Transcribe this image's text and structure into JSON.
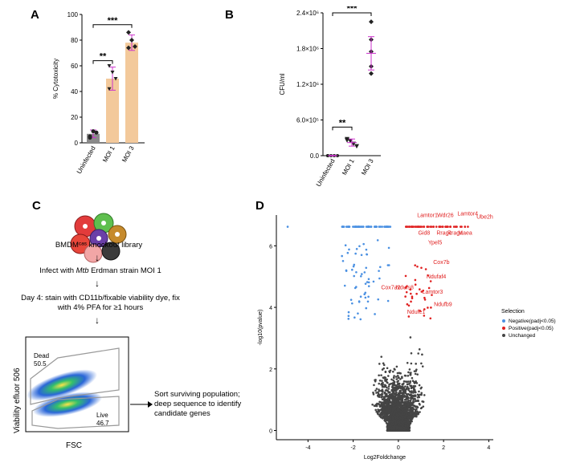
{
  "panels": {
    "a": "A",
    "b": "B",
    "c": "C",
    "d": "D"
  },
  "colors": {
    "uninfected": "#8a8a8a",
    "moi": "#f3c99b",
    "error": "#cc33cc",
    "negative": "#4a90e2",
    "positive": "#e02020",
    "unchanged": "#444444"
  },
  "chart_data": [
    {
      "type": "bar",
      "ylabel": "% Cytotoxicity",
      "ylim": [
        0,
        100
      ],
      "yticks": [
        "0",
        "20",
        "40",
        "60",
        "80",
        "100"
      ],
      "categories": [
        "Uninfected",
        "MOI 1",
        "MOI 3"
      ],
      "values": [
        7,
        50,
        78
      ],
      "errors": [
        3,
        9,
        6
      ],
      "points": [
        [
          5,
          9,
          8,
          4
        ],
        [
          60,
          55,
          50,
          42
        ],
        [
          86,
          80,
          75,
          74
        ]
      ],
      "significance": [
        "**",
        "***"
      ]
    },
    {
      "type": "scatter",
      "ylabel": "CFU/ml",
      "ylim": [
        0,
        2400000
      ],
      "yticks": [
        "0.0",
        "6.0×10⁵",
        "1.2×10⁶",
        "1.8×10⁶",
        "2.4×10⁶"
      ],
      "categories": [
        "Uninfected",
        "MOI 1",
        "MOI 3"
      ],
      "means": [
        0,
        220000,
        1720000
      ],
      "errors": [
        5000,
        60000,
        280000
      ],
      "points": [
        [
          0,
          0,
          0,
          0,
          0
        ],
        [
          280000,
          250000,
          200000,
          160000,
          260000
        ],
        [
          2250000,
          1950000,
          1750000,
          1500000,
          1380000
        ]
      ],
      "significance": [
        "**",
        "***"
      ]
    },
    {
      "type": "scatter",
      "xlabel": "Log2Foldchange",
      "ylabel": "-log10(pvalue)",
      "xlim": [
        -5.4,
        4.2
      ],
      "ylim": [
        -0.3,
        7
      ],
      "xticks": [
        "-4",
        "-2",
        "0",
        "2",
        "4"
      ],
      "yticks": [
        "0",
        "2",
        "4",
        "6"
      ],
      "legend": {
        "title": "Selection",
        "entries": [
          "Negative(padj<0.05)",
          "Positive(padj<0.05)",
          "Unchanged"
        ],
        "placement": "right"
      },
      "labels": [
        {
          "text": "Lamtor1",
          "x": 0.9,
          "y": 6.62
        },
        {
          "text": "Wdr26",
          "x": 1.5,
          "y": 6.62
        },
        {
          "text": "Lamtor4",
          "x": 2.4,
          "y": 6.62
        },
        {
          "text": "Ube2h",
          "x": 3.6,
          "y": 6.62
        },
        {
          "text": "Gid8",
          "x": 1.3,
          "y": 6.62
        },
        {
          "text": "Rragc",
          "x": 1.9,
          "y": 6.62
        },
        {
          "text": "Rraga",
          "x": 2.1,
          "y": 6.62
        },
        {
          "text": "Maea",
          "x": 3.0,
          "y": 6.62
        },
        {
          "text": "Ypel5",
          "x": 1.6,
          "y": 6.62
        },
        {
          "text": "Cox7b",
          "x": 1.4,
          "y": 5.3
        },
        {
          "text": "Ndufaf4",
          "x": 1.1,
          "y": 5.1
        },
        {
          "text": "Ndufs8",
          "x": 0.6,
          "y": 4.8
        },
        {
          "text": "Cox7a2",
          "x": 0.3,
          "y": 4.75
        },
        {
          "text": "Lamtor3",
          "x": 1.2,
          "y": 4.6
        },
        {
          "text": "Ndufb9",
          "x": 1.5,
          "y": 4.2
        },
        {
          "text": "Ndufe1",
          "x": 0.6,
          "y": 4.0
        }
      ]
    }
  ],
  "panel_c": {
    "library": "BMDMᶜᵃˢ knockout library",
    "step1_pre": "Infect with ",
    "step1_italic": "Mtb",
    "step1_post": " Erdman strain MOI 1",
    "step2": "Day 4: stain with CD11b/fixable viability dye, fix with 4% PFA for ≥1 hours",
    "flow_ylabel": "Viability efluor 506",
    "flow_xlabel": "FSC",
    "gate_dead": "Dead",
    "gate_dead_val": "50.5",
    "gate_live": "Live",
    "gate_live_val": "46.7",
    "sort_text": "Sort surviving population; deep sequence to identify candidate genes"
  }
}
